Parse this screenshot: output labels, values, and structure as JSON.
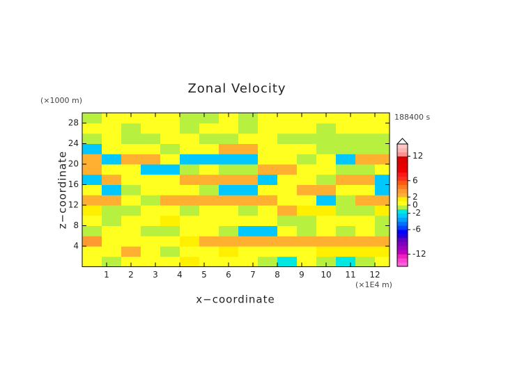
{
  "chart_data": {
    "type": "heatmap",
    "title": "Zonal Velocity",
    "x_label": "x−coordinate",
    "y_label": "z−coordinate",
    "x_unit": "(×1E4 m)",
    "y_unit": "(×1000 m)",
    "time_label": "188400 s",
    "xlim": [
      0,
      12.6
    ],
    "ylim": [
      0,
      30
    ],
    "xticks": [
      1,
      2,
      3,
      4,
      5,
      6,
      7,
      8,
      9,
      10,
      11,
      12
    ],
    "yticks": [
      4,
      8,
      12,
      16,
      20,
      24,
      28
    ],
    "x": [
      0.4,
      1.2,
      2.0,
      2.8,
      3.6,
      4.4,
      5.2,
      6.0,
      6.8,
      7.6,
      8.4,
      9.2,
      10.0,
      10.8,
      11.6,
      12.4
    ],
    "y": [
      1,
      3,
      5,
      7,
      9,
      11,
      13,
      15,
      17,
      19,
      21,
      23,
      25,
      27,
      29
    ],
    "values": [
      [
        0.5,
        -0.5,
        0.5,
        0.5,
        0.5,
        1,
        0.5,
        0.5,
        0.5,
        -0.5,
        -2,
        0.5,
        -0.5,
        -2,
        -0.5,
        0.5
      ],
      [
        0.5,
        0.5,
        2.5,
        0.5,
        -0.5,
        0.5,
        0.5,
        1,
        0.5,
        0.5,
        0.5,
        0.5,
        1,
        1,
        1,
        1
      ],
      [
        3,
        0.5,
        0.5,
        0.5,
        0.5,
        1,
        2.5,
        2.5,
        2.5,
        2.5,
        2.5,
        2.5,
        2.5,
        2.5,
        2.5,
        2.5
      ],
      [
        -0.5,
        0.5,
        0.5,
        -0.5,
        -0.5,
        0.5,
        0.5,
        -0.5,
        -2.5,
        -2.5,
        0.5,
        -0.5,
        0.5,
        -0.5,
        0.5,
        -0.5
      ],
      [
        0.5,
        -0.5,
        0.5,
        0.5,
        1,
        0.5,
        0.5,
        0.5,
        0.5,
        0.5,
        -0.5,
        -0.5,
        0.5,
        0.5,
        0.5,
        -0.5
      ],
      [
        1,
        -0.5,
        -0.5,
        0.5,
        0.5,
        -0.5,
        0.5,
        0.5,
        -0.5,
        0.5,
        2.5,
        1,
        1,
        -0.5,
        -0.5,
        1
      ],
      [
        2.5,
        2.5,
        0.5,
        -0.5,
        2.5,
        2.5,
        2.5,
        2.5,
        2.5,
        2.5,
        0.5,
        0.5,
        -2.5,
        -0.5,
        2.5,
        2.5
      ],
      [
        0.5,
        -2.5,
        -0.5,
        0.5,
        0.5,
        0.5,
        -0.5,
        -2.5,
        -2.5,
        0.5,
        0.5,
        2.5,
        2.5,
        0.5,
        0.5,
        -2.5
      ],
      [
        -2.5,
        2.5,
        0.5,
        0.5,
        0.5,
        2.5,
        2.5,
        2.5,
        2.5,
        -2.5,
        0.5,
        0.5,
        -0.5,
        2.5,
        2.5,
        -2.5
      ],
      [
        2.5,
        0.5,
        0.5,
        -2.5,
        -2.5,
        -0.5,
        0.5,
        -0.5,
        -0.5,
        2.5,
        2.5,
        0.5,
        0.5,
        -0.5,
        -0.5,
        0.5
      ],
      [
        2.5,
        -2.5,
        2.5,
        2.5,
        0.5,
        -2.5,
        -2.5,
        -2.5,
        -2.5,
        0.5,
        0.5,
        -0.5,
        0.5,
        -2.5,
        2.5,
        2.5
      ],
      [
        -2.5,
        0.5,
        0.5,
        0.5,
        -0.5,
        0.5,
        0.5,
        2.5,
        2.5,
        0.5,
        0.5,
        0.5,
        -0.5,
        -0.5,
        -0.5,
        -0.5
      ],
      [
        -0.5,
        0.5,
        -0.5,
        -0.5,
        0.5,
        0.5,
        -0.5,
        -0.5,
        0.5,
        0.5,
        -0.5,
        -0.5,
        -0.5,
        -0.5,
        -0.5,
        -0.5
      ],
      [
        0.5,
        0.5,
        -0.5,
        0.5,
        0.5,
        -0.5,
        0.5,
        0.5,
        -0.5,
        0.5,
        0.5,
        0.5,
        -0.5,
        0.5,
        0.5,
        0.5
      ],
      [
        -0.5,
        0.5,
        0.5,
        0.5,
        0.5,
        -0.5,
        -0.5,
        0.5,
        -0.5,
        0.5,
        0.5,
        0.5,
        0.5,
        0.5,
        0.5,
        0.5
      ]
    ],
    "levels": [
      -15,
      -14,
      -13,
      -12,
      -11,
      -10,
      -9,
      -8,
      -7,
      -6,
      -5,
      -4,
      -3,
      -2,
      -1,
      0,
      1,
      2,
      3,
      4,
      5,
      6,
      7,
      8,
      9,
      10,
      11,
      12,
      13,
      14,
      15
    ],
    "colors": [
      "#ff60e0",
      "#ff40d0",
      "#f020c0",
      "#c000c0",
      "#a000c0",
      "#8000c0",
      "#6000c0",
      "#2000e0",
      "#0000ff",
      "#0040ff",
      "#0070ff",
      "#00a0ff",
      "#00c8ff",
      "#00e8e0",
      "#b8f040",
      "#ffff20",
      "#fff000",
      "#ffb030",
      "#ff9a30",
      "#ff7a20",
      "#ff5a10",
      "#ff3020",
      "#ff1818",
      "#f00000",
      "#e80000",
      "#e00000",
      "#d80000",
      "#ff9090",
      "#ffb0b0",
      "#ffc4c4"
    ],
    "colorbar_ticks": [
      12,
      6,
      2,
      0,
      -2,
      -6,
      -12
    ]
  }
}
